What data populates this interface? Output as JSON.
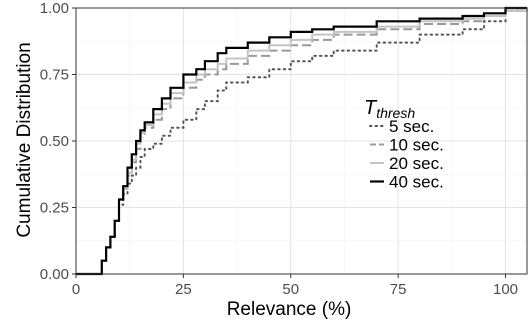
{
  "chart_data": {
    "type": "line",
    "step": true,
    "xlabel": "Relevance (%)",
    "ylabel": "Cumulative Distribution",
    "xlim": [
      0,
      105
    ],
    "ylim": [
      0,
      1
    ],
    "xticks": [
      0,
      25,
      50,
      75,
      100
    ],
    "xtick_labels": [
      "0",
      "25",
      "50",
      "75",
      "100"
    ],
    "yticks": [
      0,
      0.25,
      0.5,
      0.75,
      1
    ],
    "ytick_labels": [
      "0.00",
      "0.25",
      "0.50",
      "0.75",
      "1.00"
    ],
    "grid": true,
    "legend": {
      "position": "right-center",
      "title_main": "T",
      "title_sub": "thresh"
    },
    "series": [
      {
        "name": "5 sec.",
        "dash": "dotted",
        "color": "#555555",
        "x": [
          0,
          4,
          6,
          7,
          8,
          9,
          10,
          11,
          12,
          13,
          14,
          15,
          16,
          18,
          20,
          22,
          25,
          28,
          30,
          33,
          35,
          40,
          45,
          50,
          55,
          60,
          70,
          80,
          90,
          95,
          100,
          105
        ],
        "y": [
          0,
          0,
          0.05,
          0.1,
          0.14,
          0.2,
          0.26,
          0.3,
          0.34,
          0.37,
          0.4,
          0.44,
          0.47,
          0.49,
          0.52,
          0.55,
          0.58,
          0.62,
          0.65,
          0.69,
          0.72,
          0.74,
          0.77,
          0.8,
          0.82,
          0.84,
          0.87,
          0.9,
          0.92,
          0.95,
          0.99,
          1.0
        ]
      },
      {
        "name": "10 sec.",
        "dash": "dashed",
        "color": "#999999",
        "x": [
          0,
          4,
          6,
          7,
          8,
          9,
          10,
          11,
          12,
          13,
          14,
          15,
          16,
          18,
          20,
          22,
          25,
          28,
          30,
          33,
          35,
          40,
          45,
          50,
          55,
          60,
          70,
          80,
          90,
          95,
          100,
          105
        ],
        "y": [
          0,
          0,
          0.05,
          0.1,
          0.14,
          0.2,
          0.28,
          0.32,
          0.37,
          0.42,
          0.47,
          0.52,
          0.55,
          0.58,
          0.62,
          0.66,
          0.7,
          0.73,
          0.75,
          0.77,
          0.79,
          0.82,
          0.84,
          0.86,
          0.88,
          0.9,
          0.92,
          0.94,
          0.95,
          0.97,
          0.99,
          1.0
        ]
      },
      {
        "name": "20 sec.",
        "dash": "solid",
        "color": "#c4c4c4",
        "x": [
          0,
          4,
          6,
          7,
          8,
          9,
          10,
          11,
          12,
          13,
          14,
          15,
          16,
          18,
          20,
          22,
          25,
          28,
          30,
          33,
          35,
          40,
          45,
          50,
          55,
          60,
          70,
          80,
          90,
          95,
          100,
          105
        ],
        "y": [
          0,
          0,
          0.05,
          0.1,
          0.14,
          0.2,
          0.28,
          0.32,
          0.38,
          0.43,
          0.49,
          0.53,
          0.56,
          0.6,
          0.64,
          0.68,
          0.72,
          0.75,
          0.77,
          0.79,
          0.81,
          0.84,
          0.86,
          0.88,
          0.9,
          0.91,
          0.93,
          0.95,
          0.96,
          0.97,
          0.99,
          1.0
        ]
      },
      {
        "name": "40 sec.",
        "dash": "solid",
        "color": "#000000",
        "x": [
          0,
          4,
          6,
          7,
          8,
          9,
          10,
          11,
          12,
          13,
          14,
          15,
          16,
          18,
          20,
          22,
          25,
          28,
          30,
          33,
          35,
          40,
          45,
          50,
          55,
          60,
          70,
          80,
          90,
          95,
          100,
          105
        ],
        "y": [
          0,
          0,
          0.05,
          0.1,
          0.14,
          0.2,
          0.28,
          0.33,
          0.4,
          0.45,
          0.5,
          0.54,
          0.57,
          0.62,
          0.66,
          0.7,
          0.75,
          0.77,
          0.8,
          0.83,
          0.85,
          0.87,
          0.89,
          0.91,
          0.92,
          0.93,
          0.95,
          0.96,
          0.97,
          0.98,
          1.0,
          1.0
        ]
      }
    ]
  }
}
